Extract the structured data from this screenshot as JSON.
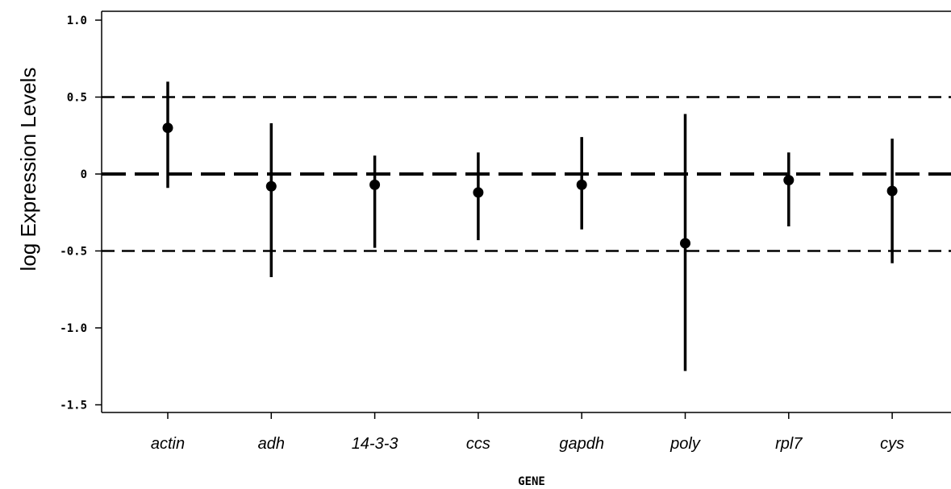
{
  "chart_data": {
    "type": "scatter",
    "subtype": "point-with-error-bars",
    "xlabel": "GENE",
    "ylabel": "log Expression Levels",
    "ylim": [
      -1.55,
      1.05
    ],
    "yticks": [
      1.0,
      0.5,
      0,
      -0.5,
      -1.0,
      -1.5
    ],
    "ytick_labels": [
      "1.0",
      "0.5",
      "0",
      "-0.5",
      "-1.0",
      "-1.5"
    ],
    "categories": [
      "actin",
      "adh",
      "14-3-3",
      "ccs",
      "gapdh",
      "poly",
      "rpl7",
      "cys"
    ],
    "points": [
      {
        "gene": "actin",
        "mean": 0.3,
        "lower": -0.09,
        "upper": 0.6
      },
      {
        "gene": "adh",
        "mean": -0.08,
        "lower": -0.67,
        "upper": 0.33
      },
      {
        "gene": "14-3-3",
        "mean": -0.07,
        "lower": -0.48,
        "upper": 0.12
      },
      {
        "gene": "ccs",
        "mean": -0.12,
        "lower": -0.43,
        "upper": 0.14
      },
      {
        "gene": "gapdh",
        "mean": -0.07,
        "lower": -0.36,
        "upper": 0.24
      },
      {
        "gene": "poly",
        "mean": -0.45,
        "lower": -1.28,
        "upper": 0.39
      },
      {
        "gene": "rpl7",
        "mean": -0.04,
        "lower": -0.34,
        "upper": 0.14
      },
      {
        "gene": "cys",
        "mean": -0.11,
        "lower": -0.58,
        "upper": 0.23
      }
    ],
    "reference_lines": [
      {
        "y": 0.5,
        "style": "dashed"
      },
      {
        "y": 0,
        "style": "long-dashed-bold"
      },
      {
        "y": -0.5,
        "style": "dashed"
      }
    ],
    "grid": false,
    "legend": "none",
    "colors": {
      "marks": "#000000",
      "background": "#ffffff"
    }
  }
}
